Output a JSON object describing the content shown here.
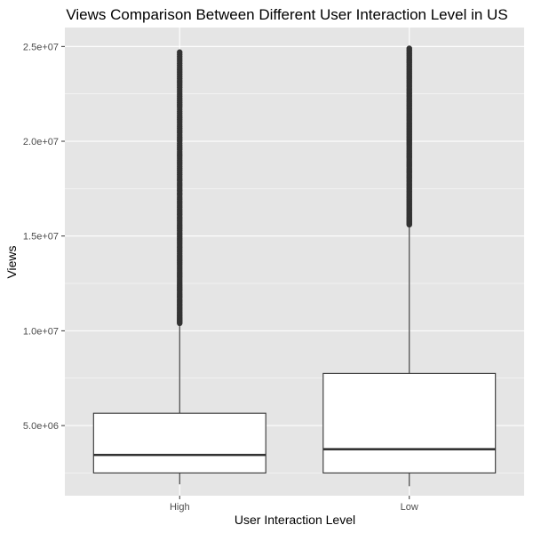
{
  "chart_data": {
    "type": "boxplot",
    "title": "Views Comparison Between Different User Interaction Level in US",
    "xlabel": "User Interaction Level",
    "ylabel": "Views",
    "categories": [
      "High",
      "Low"
    ],
    "ylim": [
      0,
      26000000
    ],
    "ylim_plot": [
      1300000,
      26000000
    ],
    "yticks": [
      5000000,
      10000000,
      15000000,
      20000000,
      25000000
    ],
    "ytick_labels": [
      "5.0e+06",
      "1.0e+07",
      "1.5e+07",
      "2.0e+07",
      "2.5e+07"
    ],
    "grid": true,
    "legend": "none",
    "boxes": [
      {
        "category": "High",
        "whisker_low": 1900000,
        "q1": 2500000,
        "median": 3450000,
        "q3": 5650000,
        "whisker_high": 10400000,
        "outliers_range": [
          10400000,
          24700000
        ]
      },
      {
        "category": "Low",
        "whisker_low": 1800000,
        "q1": 2500000,
        "median": 3750000,
        "q3": 7750000,
        "whisker_high": 15600000,
        "outliers_range": [
          15600000,
          24900000
        ]
      }
    ],
    "colors": {
      "panel_bg": "#e5e5e5",
      "grid_major": "#ffffff",
      "box_fill": "#ffffff",
      "box_stroke": "#333333",
      "outlier": "#333333"
    }
  }
}
